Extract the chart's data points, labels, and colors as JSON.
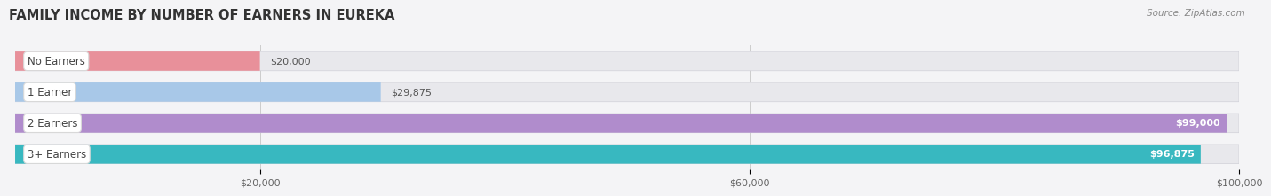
{
  "title": "FAMILY INCOME BY NUMBER OF EARNERS IN EUREKA",
  "source": "Source: ZipAtlas.com",
  "categories": [
    "No Earners",
    "1 Earner",
    "2 Earners",
    "3+ Earners"
  ],
  "values": [
    20000,
    29875,
    99000,
    96875
  ],
  "bar_colors": [
    "#e8909a",
    "#a8c8e8",
    "#b08ccc",
    "#38b8c0"
  ],
  "bar_bg_color": "#e8e8ec",
  "xlim": [
    0,
    100000
  ],
  "xticks": [
    20000,
    60000,
    100000
  ],
  "xtick_labels": [
    "$20,000",
    "$60,000",
    "$100,000"
  ],
  "value_label_inside_threshold": 50000,
  "background_color": "#f4f4f6",
  "title_fontsize": 10.5,
  "bar_height": 0.62,
  "label_fontsize": 8.5,
  "value_fontsize": 8.0
}
